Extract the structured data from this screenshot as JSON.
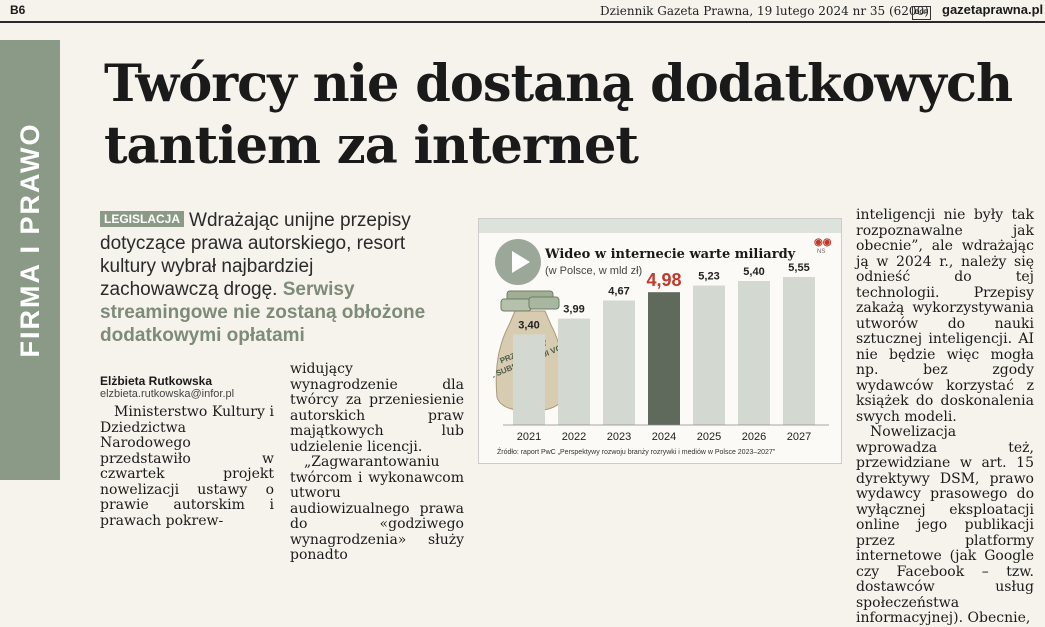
{
  "header": {
    "page_number": "B6",
    "publication_line": "Dziennik Gazeta Prawna, 19 lutego 2024 nr 35 (6200)",
    "logo": "DGP",
    "site": "gazetaprawna.pl"
  },
  "section": "FIRMA I PRAWO",
  "article": {
    "headline": "Twórcy nie dostaną dodatkowych tantiem za internet",
    "lead_tag": "LEGISLACJA",
    "lead_text": "Wdrażając unijne przepisy dotyczące prawa autorskiego, resort kultury wybrał najbardziej zachowawczą drogę.",
    "lead_accent": "Serwisy streamingowe nie zostaną obłożone dodatkowymi opłatami",
    "author": "Elżbieta Rutkowska",
    "author_email": "elzbieta.rutkowska@infor.pl",
    "col1": "Ministerstwo Kultury i Dziedzictwa Narodowego przedstawiło w czwartek projekt nowelizacji ustawy o prawie autorskim i prawach pokrew-",
    "col2_p1": "widujący wynagrodzenie dla twórcy za przeniesienie autorskich praw majątkowych lub udzielenie licencji.",
    "col2_p2": "„Zagwarantowaniu twórcom i wykonawcom utworu audiowizualnego prawa do «godziwego wynagrodzenia» służy ponadto",
    "col3_p1": "inteligencji nie były tak rozpoznawalne jak obecnie”, ale wdrażając ją w 2024 r., należy się odnieść do tej technologii. Przepisy zakażą wykorzystywania utworów do nauki sztucznej inteligencji. AI nie będzie więc mogła np. bez zgody wydawców korzystać z książek do doskonalenia swych modeli.",
    "col3_p2": "Nowelizacja wprowadza też, przewidziane w art. 15 dyrektywy DSM, prawo wydawcy prasowego do wyłącznej eksploatacji online jego publikacji przez platformy internetowe (jak Google czy Facebook – tzw. dostawców usług społeczeństwa informacyjnej). Obecnie,"
  },
  "chart_data": {
    "type": "bar",
    "title": "Wideo w internecie warte miliardy",
    "subtitle": "(w Polsce, w mld zł)",
    "categories": [
      "2021",
      "2022",
      "2023",
      "2024",
      "2025",
      "2026",
      "2027"
    ],
    "values": [
      3.4,
      3.99,
      4.67,
      4.98,
      5.23,
      5.4,
      5.55
    ],
    "value_labels": [
      "3,40",
      "3,99",
      "4,67",
      "4,98",
      "5,23",
      "5,40",
      "5,55"
    ],
    "highlight_index": 3,
    "ylim": [
      0,
      6
    ],
    "bag_label": "PRZYCHODY Z SUBSKRYPCJI VOD",
    "source": "Źródło: raport PwC „Perspektywy rozwoju branży rozrywki i mediów w Polsce 2023–2027”",
    "badge": "NS",
    "colors": {
      "bar": "#d3d8d0",
      "highlight": "#5f6a5c",
      "highlight_label": "#c0392b",
      "play": "#9ba899"
    }
  }
}
